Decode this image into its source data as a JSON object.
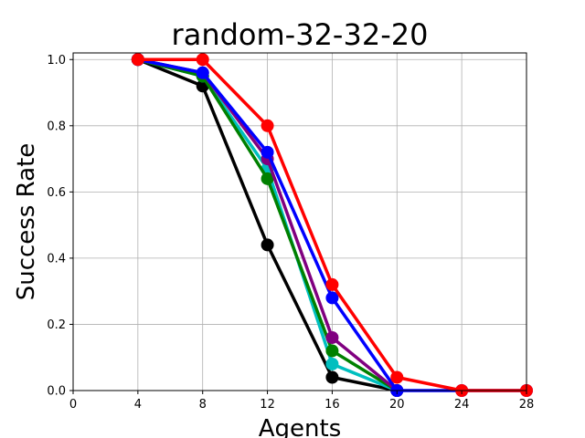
{
  "chart_data": {
    "type": "line",
    "title": "random-32-32-20",
    "xlabel": "Agents",
    "ylabel": "Success Rate",
    "xlim": [
      0,
      28
    ],
    "ylim": [
      0.0,
      1.02
    ],
    "x_ticks": [
      "0",
      "4",
      "8",
      "12",
      "16",
      "20",
      "24",
      "28"
    ],
    "y_ticks": [
      "0.0",
      "0.2",
      "0.4",
      "0.6",
      "0.8",
      "1.0"
    ],
    "grid": true,
    "legend": "none",
    "x": [
      4,
      8,
      12,
      16,
      20,
      24,
      28
    ],
    "series": [
      {
        "color": "#000000",
        "values": [
          1.0,
          0.92,
          0.44,
          0.04,
          0.0,
          null,
          null
        ]
      },
      {
        "color": "#00BFBF",
        "values": [
          1.0,
          0.95,
          0.67,
          0.08,
          0.0,
          null,
          null
        ]
      },
      {
        "color": "#008000",
        "values": [
          1.0,
          0.95,
          0.64,
          0.12,
          0.0,
          null,
          null
        ]
      },
      {
        "color": "#800080",
        "values": [
          1.0,
          0.96,
          0.7,
          0.16,
          0.0,
          null,
          null
        ]
      },
      {
        "color": "#0000FF",
        "values": [
          1.0,
          0.96,
          0.72,
          0.28,
          0.0,
          0.0,
          0.0
        ]
      },
      {
        "color": "#FF0000",
        "values": [
          1.0,
          1.0,
          0.8,
          0.32,
          0.04,
          0.0,
          0.0
        ]
      }
    ]
  }
}
